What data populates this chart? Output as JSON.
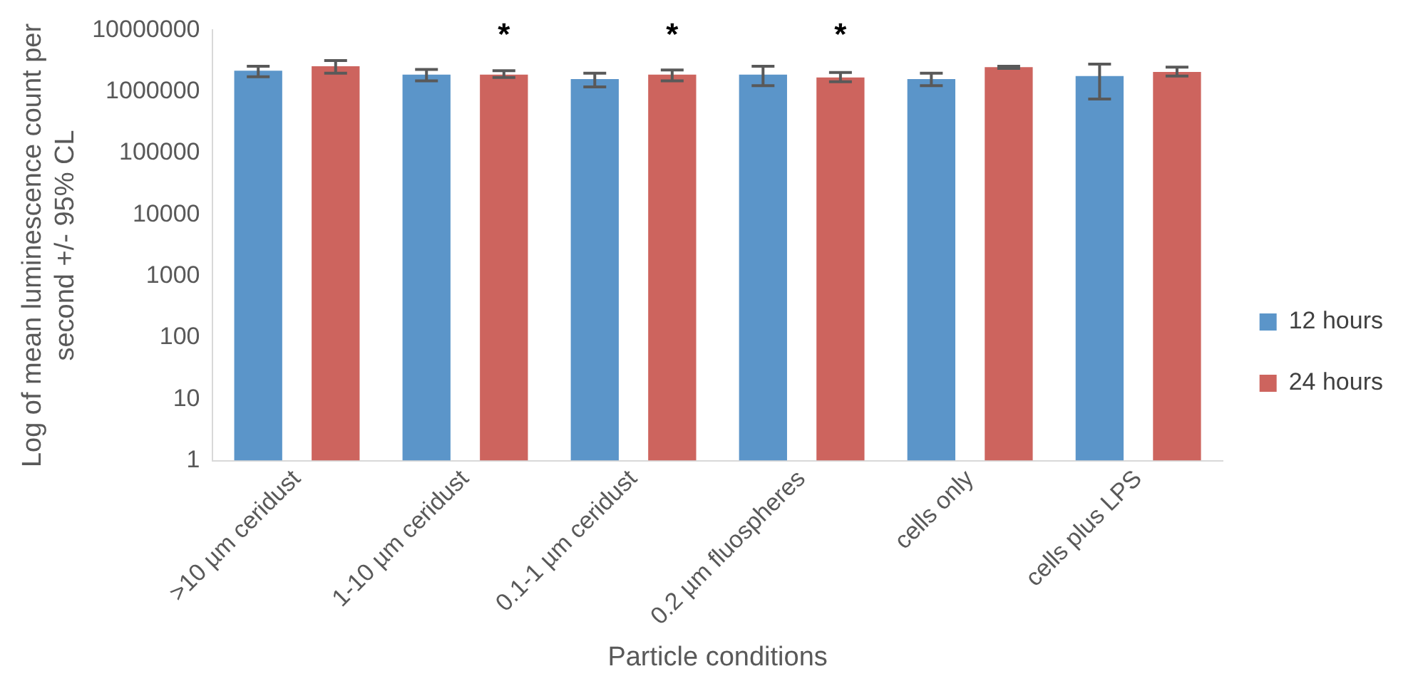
{
  "chart_data": {
    "type": "bar",
    "xlabel": "Particle conditions",
    "ylabel": "Log of mean luminescence count per second +/- 95% CL",
    "categories": [
      ">10 µm ceridust",
      "1-10 µm ceridust",
      "0.1-1 µm ceridust",
      "0.2 µm fluospheres",
      "cells only",
      "cells plus LPS"
    ],
    "series": [
      {
        "name": "12 hours",
        "color": "#5b95c9",
        "values": [
          2200000,
          1900000,
          1600000,
          1900000,
          1600000,
          1800000
        ],
        "errors": [
          [
            1750000,
            2600000
          ],
          [
            1500000,
            2300000
          ],
          [
            1200000,
            2000000
          ],
          [
            1250000,
            2600000
          ],
          [
            1250000,
            2000000
          ],
          [
            760000,
            2800000
          ]
        ]
      },
      {
        "name": "24 hours",
        "color": "#cd645e",
        "values": [
          2600000,
          1900000,
          1900000,
          1700000,
          2500000,
          2100000
        ],
        "errors": [
          [
            2000000,
            3200000
          ],
          [
            1700000,
            2200000
          ],
          [
            1500000,
            2250000
          ],
          [
            1450000,
            2050000
          ],
          [
            2400000,
            2600000
          ],
          [
            1800000,
            2500000
          ]
        ]
      }
    ],
    "annotations": [
      "*",
      "*",
      "*"
    ],
    "log": true,
    "ylim": [
      1,
      10000000
    ],
    "yticks": [
      1,
      10,
      100,
      1000,
      10000,
      100000,
      1000000,
      10000000
    ],
    "grid": false,
    "legend": "right"
  }
}
